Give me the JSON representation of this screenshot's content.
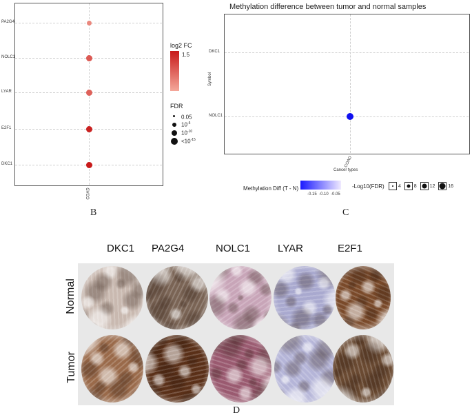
{
  "panel_b": {
    "letter": "B",
    "genes": [
      "PA2G4",
      "NOLC1",
      "LYAR",
      "E2F1",
      "DKC1"
    ],
    "x_category": "COAD",
    "chart_data": {
      "type": "scatter",
      "x": [
        "COAD",
        "COAD",
        "COAD",
        "COAD",
        "COAD"
      ],
      "y": [
        "PA2G4",
        "NOLC1",
        "LYAR",
        "E2F1",
        "DKC1"
      ],
      "log2fc": [
        0.9,
        1.2,
        1.15,
        1.55,
        1.6
      ],
      "fdr_level": [
        "0.05",
        "1e-10",
        "1e-10",
        "1e-15",
        "1e-15"
      ]
    },
    "fc_legend": {
      "title": "log2 FC",
      "high_label": "1.5",
      "color_low": "#f4a89a",
      "color_high": "#c81a1a"
    },
    "fdr_legend": {
      "title": "FDR",
      "items": [
        {
          "base": "0.05",
          "sup": ""
        },
        {
          "base": "10",
          "sup": "-5"
        },
        {
          "base": "10",
          "sup": "-10"
        },
        {
          "base": "<10",
          "sup": "-15"
        }
      ]
    }
  },
  "panel_c": {
    "letter": "C",
    "title": "Methylation difference between tumor and normal samples",
    "y_axis_label": "Symbol",
    "x_axis_label": "Cancer types",
    "y_categories": [
      "DKC1",
      "NOLC1"
    ],
    "x_category": "COAD",
    "chart_data": {
      "type": "scatter",
      "x": [
        "COAD"
      ],
      "y": [
        "NOLC1"
      ],
      "methylation_diff": [
        -0.17
      ],
      "neg_log10_fdr": [
        8
      ]
    },
    "meth_legend": {
      "title": "Methylation Diff (T - N)",
      "ticks": [
        "-0.15",
        "-0.10",
        "-0.05"
      ],
      "color_low": "#1a1aff",
      "color_high": "#f0eaff"
    },
    "fdr_legend": {
      "title": "-Log10(FDR)",
      "items": [
        "4",
        "8",
        "12",
        "16"
      ]
    },
    "point_color": "#1010f0"
  },
  "panel_d": {
    "letter": "D",
    "genes": [
      "DKC1",
      "PA2G4",
      "NOLC1",
      "LYAR",
      "E2F1"
    ],
    "row_labels": [
      "Normal",
      "Tumor"
    ],
    "stain_colors": {
      "normal": [
        "#c9b9b0",
        "#7a6455",
        "#c8a5b8",
        "#a9a9cf",
        "#7a4a2a"
      ],
      "tumor": [
        "#9a6a4a",
        "#5a3018",
        "#9a5a70",
        "#b5b5d8",
        "#6a4a32"
      ]
    }
  }
}
